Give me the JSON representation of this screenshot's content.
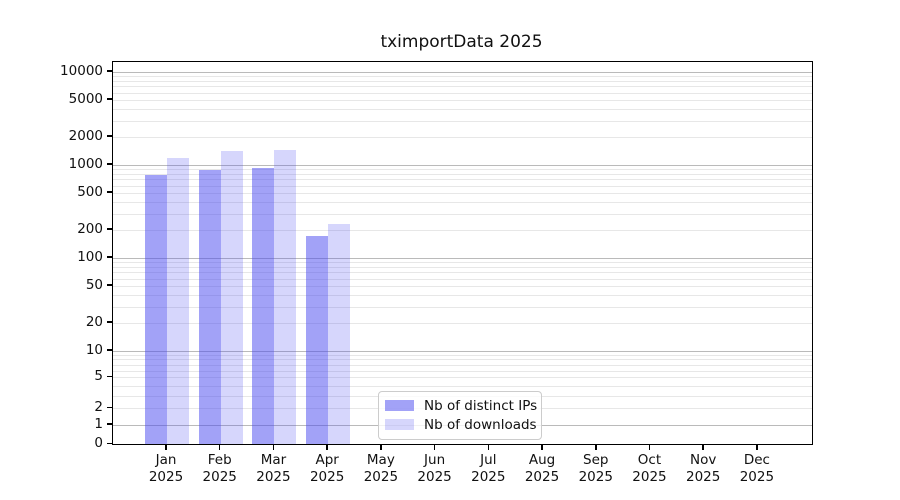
{
  "chart_data": {
    "type": "bar",
    "title": "tximportData 2025",
    "year_label": "2025",
    "categories": [
      "Jan",
      "Feb",
      "Mar",
      "Apr",
      "May",
      "Jun",
      "Jul",
      "Aug",
      "Sep",
      "Oct",
      "Nov",
      "Dec"
    ],
    "series": [
      {
        "name": "Nb of distinct IPs",
        "color": "rgba(70,70,240,0.50)",
        "values": [
          780,
          880,
          920,
          172,
          null,
          null,
          null,
          null,
          null,
          null,
          null,
          null
        ]
      },
      {
        "name": "Nb of downloads",
        "color": "rgba(70,70,240,0.22)",
        "values": [
          1180,
          1410,
          1450,
          230,
          null,
          null,
          null,
          null,
          null,
          null,
          null,
          null
        ]
      }
    ],
    "yscale": "asinh-log",
    "ylim": [
      0,
      12800
    ],
    "yticks_labeled": [
      0,
      1,
      2,
      5,
      10,
      20,
      50,
      100,
      200,
      500,
      1000,
      2000,
      5000,
      10000
    ],
    "ygrid_major": [
      1,
      10,
      100,
      1000,
      10000
    ],
    "grid": "both",
    "legend_position": "bottom-center",
    "xlabel": "",
    "ylabel": ""
  },
  "colors": {
    "grid_major": "#b3b3b3",
    "grid_minor": "#e7e7e7",
    "axis": "#000000",
    "text": "#111111"
  }
}
